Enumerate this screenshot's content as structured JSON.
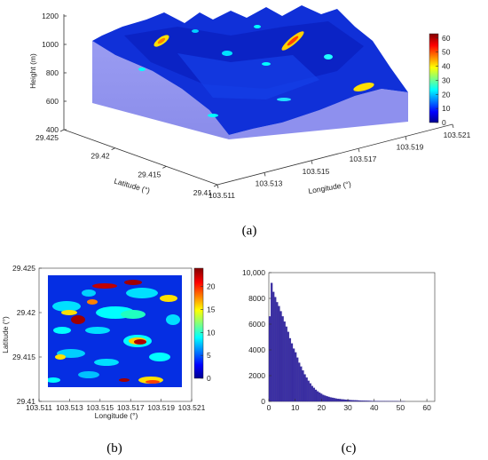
{
  "figure": {
    "captions": [
      "(a)",
      "(b)",
      "(c)"
    ]
  },
  "chart_data": [
    {
      "id": "a",
      "type": "surface3d",
      "zlabel": "Height (m)",
      "xlabel": "Longitude (°)",
      "ylabel": "Latitude (°)",
      "z_ticks": [
        "400",
        "600",
        "800",
        "1000",
        "1200"
      ],
      "x_ticks": [
        "103.511",
        "103.513",
        "103.515",
        "103.517",
        "103.519",
        "103.521"
      ],
      "y_ticks": [
        "29.425",
        "29.42",
        "29.415",
        "29.41"
      ],
      "xlim": [
        103.511,
        103.521
      ],
      "ylim": [
        29.41,
        29.425
      ],
      "zlim": [
        400,
        1200
      ],
      "colorbar": {
        "ticks": [
          "0",
          "10",
          "20",
          "30",
          "40",
          "50",
          "60"
        ],
        "range": [
          0,
          63
        ],
        "colormap": "jet"
      },
      "grid": false
    },
    {
      "id": "b",
      "type": "heatmap",
      "xlabel": "Longitude (°)",
      "ylabel": "Latitude (°)",
      "x_ticks": [
        "103.511",
        "103.513",
        "103.515",
        "103.517",
        "103.519",
        "103.521"
      ],
      "y_ticks": [
        "29.425",
        "29.42",
        "29.415",
        "29.41"
      ],
      "xlim": [
        103.511,
        103.521
      ],
      "ylim": [
        29.41,
        29.425
      ],
      "colorbar": {
        "ticks": [
          "0",
          "5",
          "10",
          "15",
          "20"
        ],
        "range": [
          0,
          24
        ],
        "colormap": "jet"
      },
      "grid": false
    },
    {
      "id": "c",
      "type": "bar",
      "x_ticks": [
        "0",
        "10",
        "20",
        "30",
        "40",
        "50",
        "60"
      ],
      "y_ticks": [
        "0",
        "2000",
        "4000",
        "6000",
        "8000",
        "10,000"
      ],
      "xlim": [
        0,
        63
      ],
      "ylim": [
        0,
        10000
      ],
      "bar_color": "#3b2fa3",
      "bins": [
        {
          "x": 0.0,
          "y": 6600
        },
        {
          "x": 0.7,
          "y": 9200
        },
        {
          "x": 1.4,
          "y": 8500
        },
        {
          "x": 2.1,
          "y": 8100
        },
        {
          "x": 2.8,
          "y": 7700
        },
        {
          "x": 3.5,
          "y": 7400
        },
        {
          "x": 4.2,
          "y": 7000
        },
        {
          "x": 4.9,
          "y": 6600
        },
        {
          "x": 5.6,
          "y": 6200
        },
        {
          "x": 6.3,
          "y": 5800
        },
        {
          "x": 7.0,
          "y": 5400
        },
        {
          "x": 7.7,
          "y": 4900
        },
        {
          "x": 8.4,
          "y": 4500
        },
        {
          "x": 9.1,
          "y": 4100
        },
        {
          "x": 9.8,
          "y": 3800
        },
        {
          "x": 10.5,
          "y": 3400
        },
        {
          "x": 11.2,
          "y": 3000
        },
        {
          "x": 11.9,
          "y": 2700
        },
        {
          "x": 12.6,
          "y": 2400
        },
        {
          "x": 13.3,
          "y": 2100
        },
        {
          "x": 14.0,
          "y": 1850
        },
        {
          "x": 14.7,
          "y": 1600
        },
        {
          "x": 15.4,
          "y": 1400
        },
        {
          "x": 16.1,
          "y": 1200
        },
        {
          "x": 16.8,
          "y": 1050
        },
        {
          "x": 17.5,
          "y": 900
        },
        {
          "x": 18.2,
          "y": 780
        },
        {
          "x": 18.9,
          "y": 680
        },
        {
          "x": 19.6,
          "y": 590
        },
        {
          "x": 20.3,
          "y": 510
        },
        {
          "x": 21.0,
          "y": 450
        },
        {
          "x": 21.7,
          "y": 400
        },
        {
          "x": 22.4,
          "y": 350
        },
        {
          "x": 23.1,
          "y": 310
        },
        {
          "x": 23.8,
          "y": 280
        },
        {
          "x": 24.5,
          "y": 250
        },
        {
          "x": 25.2,
          "y": 220
        },
        {
          "x": 25.9,
          "y": 200
        },
        {
          "x": 26.6,
          "y": 180
        },
        {
          "x": 27.3,
          "y": 165
        },
        {
          "x": 28.0,
          "y": 150
        },
        {
          "x": 28.7,
          "y": 135
        },
        {
          "x": 29.4,
          "y": 120
        },
        {
          "x": 30.1,
          "y": 110
        },
        {
          "x": 30.8,
          "y": 100
        },
        {
          "x": 31.5,
          "y": 95
        },
        {
          "x": 32.2,
          "y": 85
        },
        {
          "x": 32.9,
          "y": 80
        },
        {
          "x": 33.6,
          "y": 72
        },
        {
          "x": 34.3,
          "y": 65
        },
        {
          "x": 35.0,
          "y": 60
        },
        {
          "x": 35.7,
          "y": 55
        },
        {
          "x": 36.4,
          "y": 50
        },
        {
          "x": 37.1,
          "y": 45
        },
        {
          "x": 37.8,
          "y": 40
        },
        {
          "x": 38.5,
          "y": 36
        },
        {
          "x": 39.2,
          "y": 32
        },
        {
          "x": 39.9,
          "y": 30
        },
        {
          "x": 40.6,
          "y": 28
        },
        {
          "x": 41.3,
          "y": 25
        },
        {
          "x": 42.0,
          "y": 22
        },
        {
          "x": 42.7,
          "y": 20
        },
        {
          "x": 43.4,
          "y": 18
        },
        {
          "x": 44.1,
          "y": 16
        },
        {
          "x": 44.8,
          "y": 14
        },
        {
          "x": 45.5,
          "y": 12
        },
        {
          "x": 46.2,
          "y": 10
        },
        {
          "x": 46.9,
          "y": 9
        },
        {
          "x": 47.6,
          "y": 8
        },
        {
          "x": 48.3,
          "y": 7
        },
        {
          "x": 49.0,
          "y": 6
        },
        {
          "x": 49.7,
          "y": 5
        },
        {
          "x": 50.4,
          "y": 4
        },
        {
          "x": 51.1,
          "y": 3
        }
      ]
    }
  ]
}
